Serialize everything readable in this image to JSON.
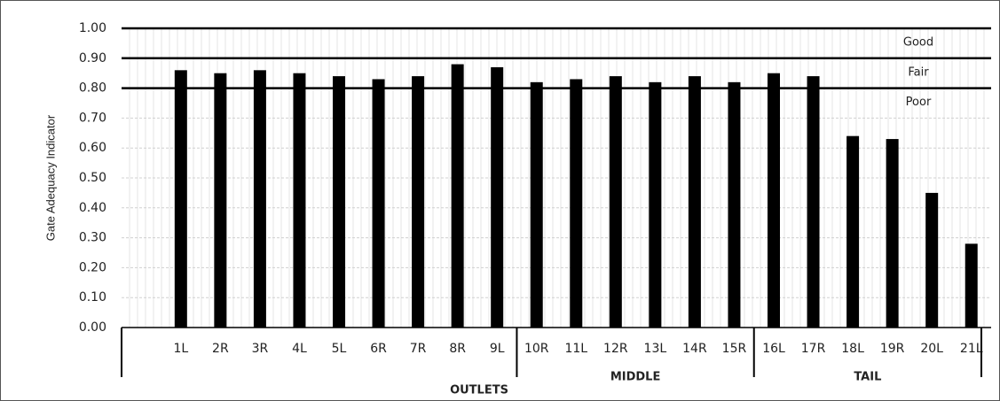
{
  "chart_data": {
    "type": "bar",
    "ylabel": "Gate Adequacy Indicator",
    "xlabel": "OUTLETS",
    "categories": [
      null,
      "1L",
      "2R",
      "3R",
      "4L",
      "5L",
      "6R",
      "7R",
      "8R",
      "9L",
      "10R",
      "11L",
      "12R",
      "13L",
      "14R",
      "15R",
      "16L",
      "17R",
      "18L",
      "19R",
      "20L",
      "21L"
    ],
    "values": [
      null,
      0.86,
      0.85,
      0.86,
      0.85,
      0.84,
      0.83,
      0.84,
      0.88,
      0.87,
      0.82,
      0.83,
      0.84,
      0.82,
      0.84,
      0.82,
      0.85,
      0.84,
      0.64,
      0.63,
      0.45,
      0.28
    ],
    "color": "#000000",
    "ylim": [
      0,
      1
    ],
    "yticks": [
      {
        "value": 0,
        "label": "0.00"
      },
      {
        "value": 0.1,
        "label": "0.10"
      },
      {
        "value": 0.2,
        "label": "0.20"
      },
      {
        "value": 0.3,
        "label": "0.30"
      },
      {
        "value": 0.4,
        "label": "0.40"
      },
      {
        "value": 0.5,
        "label": "0.50"
      },
      {
        "value": 0.6,
        "label": "0.60"
      },
      {
        "value": 0.7,
        "label": "0.70"
      },
      {
        "value": 0.8,
        "label": "0.80"
      },
      {
        "value": 0.9,
        "label": "0.90"
      },
      {
        "value": 1,
        "label": "1.00"
      }
    ],
    "grid": true,
    "zones": [
      {
        "label": "Good",
        "line": 1
      },
      {
        "label": "Fair",
        "line": 0.9
      },
      {
        "label": "Poor",
        "line": 0.8
      }
    ],
    "groups": [
      {
        "label": null,
        "size": 10
      },
      {
        "label": "MIDDLE",
        "size": 6
      },
      {
        "label": "TAIL",
        "size": 6
      }
    ]
  }
}
